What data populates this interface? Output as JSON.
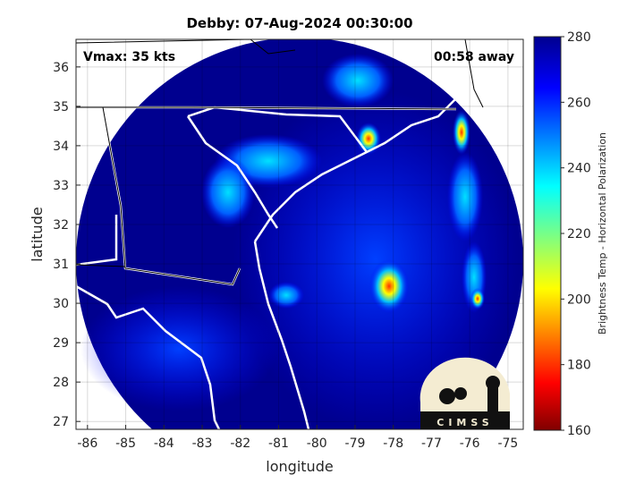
{
  "chart_data": {
    "type": "heatmap",
    "title": "Debby: 07-Aug-2024 00:30:00",
    "xlabel": "longitude",
    "ylabel": "latitude",
    "xlim": [
      -86.3,
      -74.6
    ],
    "ylim": [
      26.8,
      36.7
    ],
    "xticks": [
      -86,
      -85,
      -84,
      -83,
      -82,
      -81,
      -80,
      -79,
      -78,
      -77,
      -76,
      -75
    ],
    "yticks": [
      27,
      28,
      29,
      30,
      31,
      32,
      33,
      34,
      35,
      36
    ],
    "grid": true,
    "colormap": "jet",
    "colorbar": {
      "label": "Brightness Temp - Horizontal Polarization",
      "range": [
        160,
        280
      ],
      "ticks": [
        160,
        180,
        200,
        220,
        240,
        260,
        280
      ],
      "placement": "right"
    },
    "annotations": {
      "vmax": "Vmax: 35 kts",
      "time_offset": "00:58 away"
    },
    "cold_features": [
      {
        "lon": -78.1,
        "lat": 30.3,
        "min_tb": 190
      },
      {
        "lon": -76.1,
        "lat": 34.4,
        "min_tb": 195
      },
      {
        "lon": -78.9,
        "lat": 34.1,
        "min_tb": 205
      },
      {
        "lon": -76.2,
        "lat": 30.2,
        "min_tb": 205
      }
    ]
  },
  "logo": {
    "text": "CIMSS"
  },
  "colors": {
    "background_swath": "#00008f",
    "coast": "#ffffff",
    "border": "#000000"
  }
}
